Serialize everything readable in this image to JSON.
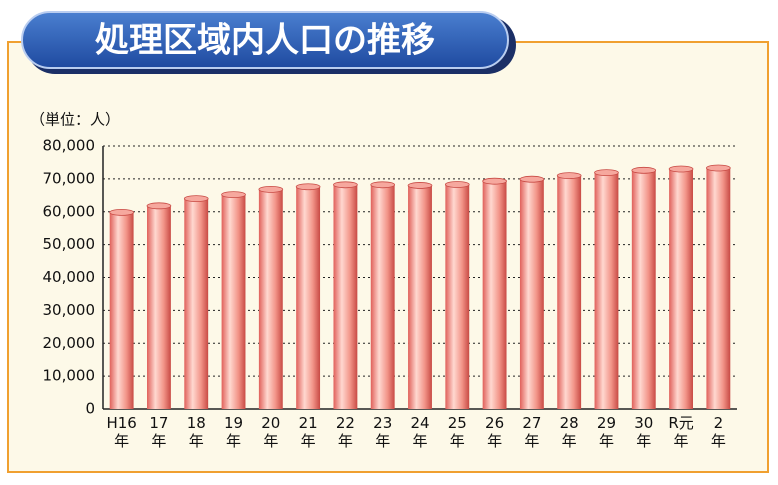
{
  "chart_data": {
    "type": "bar",
    "title": "処理区域内人口の推移",
    "unit_label": "（単位：人）",
    "categories": [
      "H16年",
      "17年",
      "18年",
      "19年",
      "20年",
      "21年",
      "22年",
      "23年",
      "24年",
      "25年",
      "26年",
      "27年",
      "28年",
      "29年",
      "30年",
      "R元年",
      "2年"
    ],
    "values": [
      59800,
      61800,
      64000,
      65200,
      66800,
      67600,
      68200,
      68200,
      68000,
      68300,
      69300,
      69900,
      71000,
      71900,
      72600,
      73000,
      73300
    ],
    "color": "#f08a80",
    "ylim": [
      0,
      80000
    ],
    "yticks": [
      0,
      {
        "value": 10000,
        "label": "10,000"
      },
      {
        "value": 20000,
        "label": "20,000"
      },
      {
        "value": 30000,
        "label": "30,000"
      },
      {
        "value": 40000,
        "label": "40,000"
      },
      {
        "value": 50000,
        "label": "50,000"
      },
      {
        "value": 60000,
        "label": "60,000"
      },
      {
        "value": 70000,
        "label": "70,000"
      },
      {
        "value": 80000,
        "label": "80,000"
      }
    ],
    "grid": true
  }
}
